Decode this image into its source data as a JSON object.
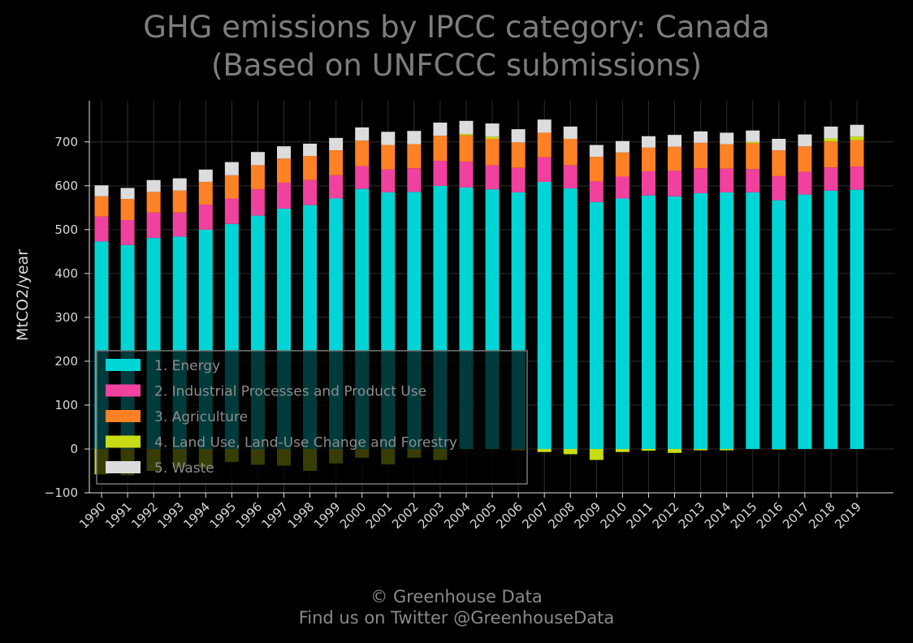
{
  "title": {
    "line1": "GHG emissions by IPCC category: Canada",
    "line2": "(Based on UNFCCC submissions)"
  },
  "footer": {
    "line1": "© Greenhouse Data",
    "line2": "Find us on Twitter @GreenhouseData"
  },
  "chart_data": {
    "type": "bar",
    "stacked": true,
    "ylabel": "MtCO2/year",
    "xlabel": "",
    "ylim": [
      -100,
      790
    ],
    "yticks": [
      -100,
      0,
      100,
      200,
      300,
      400,
      500,
      600,
      700
    ],
    "ytick_labels": [
      "−100",
      "0",
      "100",
      "200",
      "300",
      "400",
      "500",
      "600",
      "700"
    ],
    "grid": true,
    "legend_position": "lower-left",
    "categories": [
      "1990",
      "1991",
      "1992",
      "1993",
      "1994",
      "1995",
      "1996",
      "1997",
      "1998",
      "1999",
      "2000",
      "2001",
      "2002",
      "2003",
      "2004",
      "2005",
      "2006",
      "2007",
      "2008",
      "2009",
      "2010",
      "2011",
      "2012",
      "2013",
      "2014",
      "2015",
      "2016",
      "2017",
      "2018",
      "2019"
    ],
    "series": [
      {
        "name": "1. Energy",
        "color": "#00d5d5",
        "values": [
          473,
          465,
          481,
          484,
          500,
          513,
          532,
          548,
          556,
          571,
          593,
          585,
          586,
          600,
          596,
          592,
          585,
          609,
          594,
          563,
          571,
          578,
          576,
          583,
          585,
          585,
          567,
          580,
          589,
          591
        ]
      },
      {
        "name": "2. Industrial Processes and Product Use",
        "color": "#f0419f",
        "values": [
          57,
          57,
          58,
          55,
          57,
          58,
          60,
          59,
          57,
          53,
          52,
          52,
          54,
          57,
          59,
          55,
          56,
          56,
          53,
          47,
          50,
          55,
          58,
          57,
          54,
          53,
          55,
          52,
          53,
          53
        ]
      },
      {
        "name": "3. Agriculture",
        "color": "#fe8126",
        "values": [
          46,
          48,
          47,
          50,
          52,
          53,
          55,
          55,
          55,
          57,
          58,
          56,
          55,
          57,
          60,
          60,
          58,
          56,
          60,
          56,
          55,
          54,
          55,
          58,
          56,
          59,
          59,
          58,
          59,
          60
        ]
      },
      {
        "name": "4. Land Use, Land-Use Change and Forestry",
        "color": "#c8dc14",
        "values": [
          -58,
          -60,
          -50,
          -42,
          -44,
          -30,
          -36,
          -38,
          -50,
          -33,
          -20,
          -35,
          -20,
          -25,
          3,
          5,
          -3,
          -7,
          -12,
          -25,
          -7,
          -4,
          -9,
          -3,
          -3,
          3,
          -1,
          0,
          7,
          8
        ]
      },
      {
        "name": "5. Waste",
        "color": "#dcdcdc",
        "values": [
          25,
          25,
          27,
          28,
          28,
          30,
          30,
          28,
          28,
          28,
          30,
          30,
          30,
          30,
          30,
          30,
          30,
          30,
          28,
          27,
          26,
          26,
          27,
          26,
          26,
          26,
          26,
          27,
          27,
          27
        ]
      }
    ]
  }
}
